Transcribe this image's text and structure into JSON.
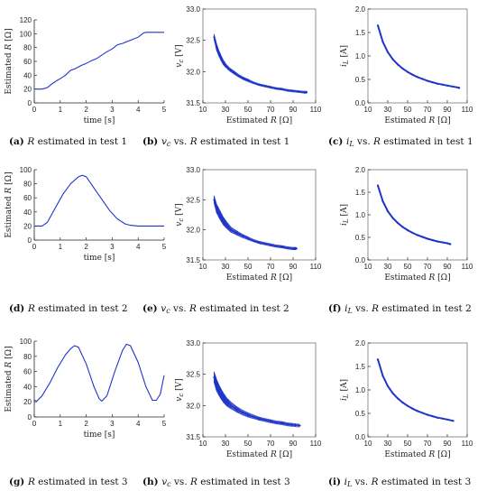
{
  "colors": {
    "series": "#1f35c8",
    "axis": "#222222",
    "frame": "#777777"
  },
  "chart_data": [
    {
      "id": "a",
      "type": "line",
      "caption": {
        "letter": "(a)",
        "text": "R  estimated in test 1"
      },
      "xlabel": "time [s]",
      "ylabel": "Estimated  R [Ω]",
      "xlim": [
        0,
        5
      ],
      "ylim": [
        0,
        120
      ],
      "xticks": [
        0,
        1,
        2,
        3,
        4,
        5
      ],
      "yticks": [
        0,
        20,
        40,
        60,
        80,
        100,
        120
      ],
      "x": [
        0,
        0.3,
        0.5,
        0.7,
        0.9,
        1.0,
        1.2,
        1.4,
        1.6,
        1.8,
        2.0,
        2.2,
        2.4,
        2.6,
        2.8,
        3.0,
        3.2,
        3.4,
        3.6,
        3.8,
        4.0,
        4.2,
        4.3,
        4.5,
        4.7,
        5.0
      ],
      "values": [
        20,
        20,
        22,
        28,
        33,
        35,
        40,
        47,
        50,
        54,
        57,
        61,
        64,
        69,
        74,
        78,
        84,
        86,
        89,
        92,
        95,
        101,
        102,
        102,
        102,
        102
      ]
    },
    {
      "id": "b",
      "type": "scatter",
      "caption": {
        "letter": "(b)",
        "text": "vc  vs.  R  estimated in test 1"
      },
      "xlabel": "Estimated  R [Ω]",
      "ylabel": "vc [V]",
      "xlim": [
        10,
        110
      ],
      "ylim": [
        31.5,
        33.0
      ],
      "xticks": [
        10,
        30,
        50,
        70,
        90,
        110
      ],
      "yticks": [
        31.5,
        32.0,
        32.5,
        33.0
      ],
      "x": [
        20,
        22,
        24,
        26,
        28,
        30,
        34,
        38,
        42,
        46,
        50,
        55,
        60,
        65,
        70,
        75,
        80,
        85,
        90,
        95,
        100,
        102
      ],
      "values": [
        32.55,
        32.4,
        32.3,
        32.22,
        32.15,
        32.1,
        32.03,
        31.98,
        31.93,
        31.89,
        31.86,
        31.82,
        31.79,
        31.77,
        31.75,
        31.73,
        31.72,
        31.7,
        31.69,
        31.68,
        31.67,
        31.67
      ],
      "spread": [
        0.1,
        0.12,
        0.1,
        0.09,
        0.08,
        0.07,
        0.06,
        0.06,
        0.05,
        0.05,
        0.05,
        0.04,
        0.04,
        0.04,
        0.04,
        0.04,
        0.04,
        0.04,
        0.04,
        0.04,
        0.04,
        0.04
      ]
    },
    {
      "id": "c",
      "type": "scatter",
      "caption": {
        "letter": "(c)",
        "text": "iL  vs.  R  estimated in test 1"
      },
      "xlabel": "Estimated  R [Ω]",
      "ylabel": "iL [A]",
      "xlim": [
        10,
        110
      ],
      "ylim": [
        0,
        2.0
      ],
      "xticks": [
        10,
        30,
        50,
        70,
        90,
        110
      ],
      "yticks": [
        0,
        0.5,
        1.0,
        1.5,
        2.0
      ],
      "x": [
        20,
        25,
        30,
        35,
        40,
        45,
        50,
        55,
        60,
        65,
        70,
        75,
        80,
        85,
        90,
        95,
        100,
        102
      ],
      "values": [
        1.65,
        1.3,
        1.08,
        0.93,
        0.82,
        0.73,
        0.66,
        0.6,
        0.55,
        0.51,
        0.47,
        0.44,
        0.41,
        0.39,
        0.37,
        0.35,
        0.33,
        0.32
      ]
    },
    {
      "id": "d",
      "type": "line",
      "caption": {
        "letter": "(d)",
        "text": "R  estimated in test 2"
      },
      "xlabel": "time [s]",
      "ylabel": "Estimated  R [Ω]",
      "xlim": [
        0,
        5
      ],
      "ylim": [
        0,
        100
      ],
      "xticks": [
        0,
        1,
        2,
        3,
        4,
        5
      ],
      "yticks": [
        0,
        20,
        40,
        60,
        80,
        100
      ],
      "x": [
        0,
        0.3,
        0.5,
        0.8,
        1.1,
        1.4,
        1.7,
        1.85,
        2.0,
        2.3,
        2.6,
        2.9,
        3.2,
        3.5,
        3.7,
        4.0,
        4.5,
        5.0
      ],
      "values": [
        20,
        20,
        25,
        45,
        65,
        80,
        90,
        92,
        90,
        74,
        58,
        42,
        30,
        23,
        21,
        20,
        20,
        20
      ]
    },
    {
      "id": "e",
      "type": "scatter",
      "caption": {
        "letter": "(e)",
        "text": "vc  vs.  R  estimated in test 2"
      },
      "xlabel": "Estimated  R [Ω]",
      "ylabel": "vc [V]",
      "xlim": [
        10,
        110
      ],
      "ylim": [
        31.5,
        33.0
      ],
      "xticks": [
        10,
        30,
        50,
        70,
        90,
        110
      ],
      "yticks": [
        31.5,
        32.0,
        32.5,
        33.0
      ],
      "x": [
        20,
        22,
        25,
        28,
        31,
        35,
        40,
        45,
        50,
        55,
        60,
        65,
        70,
        75,
        80,
        85,
        90,
        93
      ],
      "values": [
        32.5,
        32.36,
        32.25,
        32.15,
        32.08,
        32.0,
        31.95,
        31.9,
        31.86,
        31.82,
        31.79,
        31.77,
        31.75,
        31.73,
        31.72,
        31.7,
        31.69,
        31.69
      ],
      "spread": [
        0.14,
        0.16,
        0.16,
        0.14,
        0.12,
        0.1,
        0.08,
        0.07,
        0.06,
        0.05,
        0.05,
        0.05,
        0.05,
        0.05,
        0.05,
        0.05,
        0.05,
        0.05
      ]
    },
    {
      "id": "f",
      "type": "scatter",
      "caption": {
        "letter": "(f)",
        "text": "iL  vs.  R  estimated in test 2"
      },
      "xlabel": "Estimated  R [Ω]",
      "ylabel": "iL [A]",
      "xlim": [
        10,
        110
      ],
      "ylim": [
        0,
        2.0
      ],
      "xticks": [
        10,
        30,
        50,
        70,
        90,
        110
      ],
      "yticks": [
        0,
        0.5,
        1.0,
        1.5,
        2.0
      ],
      "x": [
        20,
        25,
        30,
        35,
        40,
        45,
        50,
        55,
        60,
        65,
        70,
        75,
        80,
        85,
        90,
        93
      ],
      "values": [
        1.65,
        1.3,
        1.08,
        0.93,
        0.82,
        0.73,
        0.66,
        0.6,
        0.55,
        0.51,
        0.47,
        0.44,
        0.41,
        0.39,
        0.37,
        0.35
      ]
    },
    {
      "id": "g",
      "type": "line",
      "caption": {
        "letter": "(g)",
        "text": "R  estimated in test 3"
      },
      "xlabel": "time [s]",
      "ylabel": "Estimated  R [Ω]",
      "xlim": [
        0,
        5
      ],
      "ylim": [
        0,
        100
      ],
      "xticks": [
        0,
        1,
        2,
        3,
        4,
        5
      ],
      "yticks": [
        0,
        20,
        40,
        60,
        80,
        100
      ],
      "x": [
        0,
        0.1,
        0.3,
        0.6,
        0.9,
        1.2,
        1.4,
        1.55,
        1.7,
        2.0,
        2.3,
        2.5,
        2.6,
        2.8,
        3.1,
        3.4,
        3.55,
        3.7,
        4.0,
        4.3,
        4.55,
        4.7,
        4.85,
        5.0
      ],
      "values": [
        22,
        21,
        28,
        45,
        65,
        82,
        90,
        94,
        92,
        70,
        40,
        24,
        21,
        28,
        60,
        88,
        96,
        94,
        72,
        40,
        22,
        22,
        30,
        55
      ]
    },
    {
      "id": "h",
      "type": "scatter",
      "caption": {
        "letter": "(h)",
        "text": "vc  vs.  R  estimated in test 3"
      },
      "xlabel": "Estimated  R [Ω]",
      "ylabel": "vc [V]",
      "xlim": [
        10,
        110
      ],
      "ylim": [
        31.5,
        33.0
      ],
      "xticks": [
        10,
        30,
        50,
        70,
        90,
        110
      ],
      "yticks": [
        31.5,
        32.0,
        32.5,
        33.0
      ],
      "x": [
        20,
        22,
        25,
        28,
        31,
        35,
        40,
        45,
        50,
        55,
        60,
        65,
        70,
        75,
        80,
        85,
        90,
        96
      ],
      "values": [
        32.45,
        32.33,
        32.22,
        32.13,
        32.06,
        32.0,
        31.94,
        31.89,
        31.85,
        31.82,
        31.79,
        31.77,
        31.75,
        31.73,
        31.72,
        31.7,
        31.69,
        31.68
      ],
      "spread": [
        0.18,
        0.2,
        0.18,
        0.16,
        0.14,
        0.12,
        0.1,
        0.09,
        0.08,
        0.07,
        0.06,
        0.06,
        0.06,
        0.06,
        0.06,
        0.06,
        0.06,
        0.06
      ]
    },
    {
      "id": "i",
      "type": "scatter",
      "caption": {
        "letter": "(i)",
        "text": "iL  vs.  R  estimated in test 3"
      },
      "xlabel": "Estimated  R [Ω]",
      "ylabel": "iL [A]",
      "xlim": [
        10,
        110
      ],
      "ylim": [
        0,
        2.0
      ],
      "xticks": [
        10,
        30,
        50,
        70,
        90,
        110
      ],
      "yticks": [
        0,
        0.5,
        1.0,
        1.5,
        2.0
      ],
      "x": [
        20,
        25,
        30,
        35,
        40,
        45,
        50,
        55,
        60,
        65,
        70,
        75,
        80,
        85,
        90,
        96
      ],
      "values": [
        1.65,
        1.3,
        1.08,
        0.93,
        0.82,
        0.73,
        0.66,
        0.6,
        0.55,
        0.51,
        0.47,
        0.44,
        0.41,
        0.39,
        0.37,
        0.34
      ]
    }
  ]
}
